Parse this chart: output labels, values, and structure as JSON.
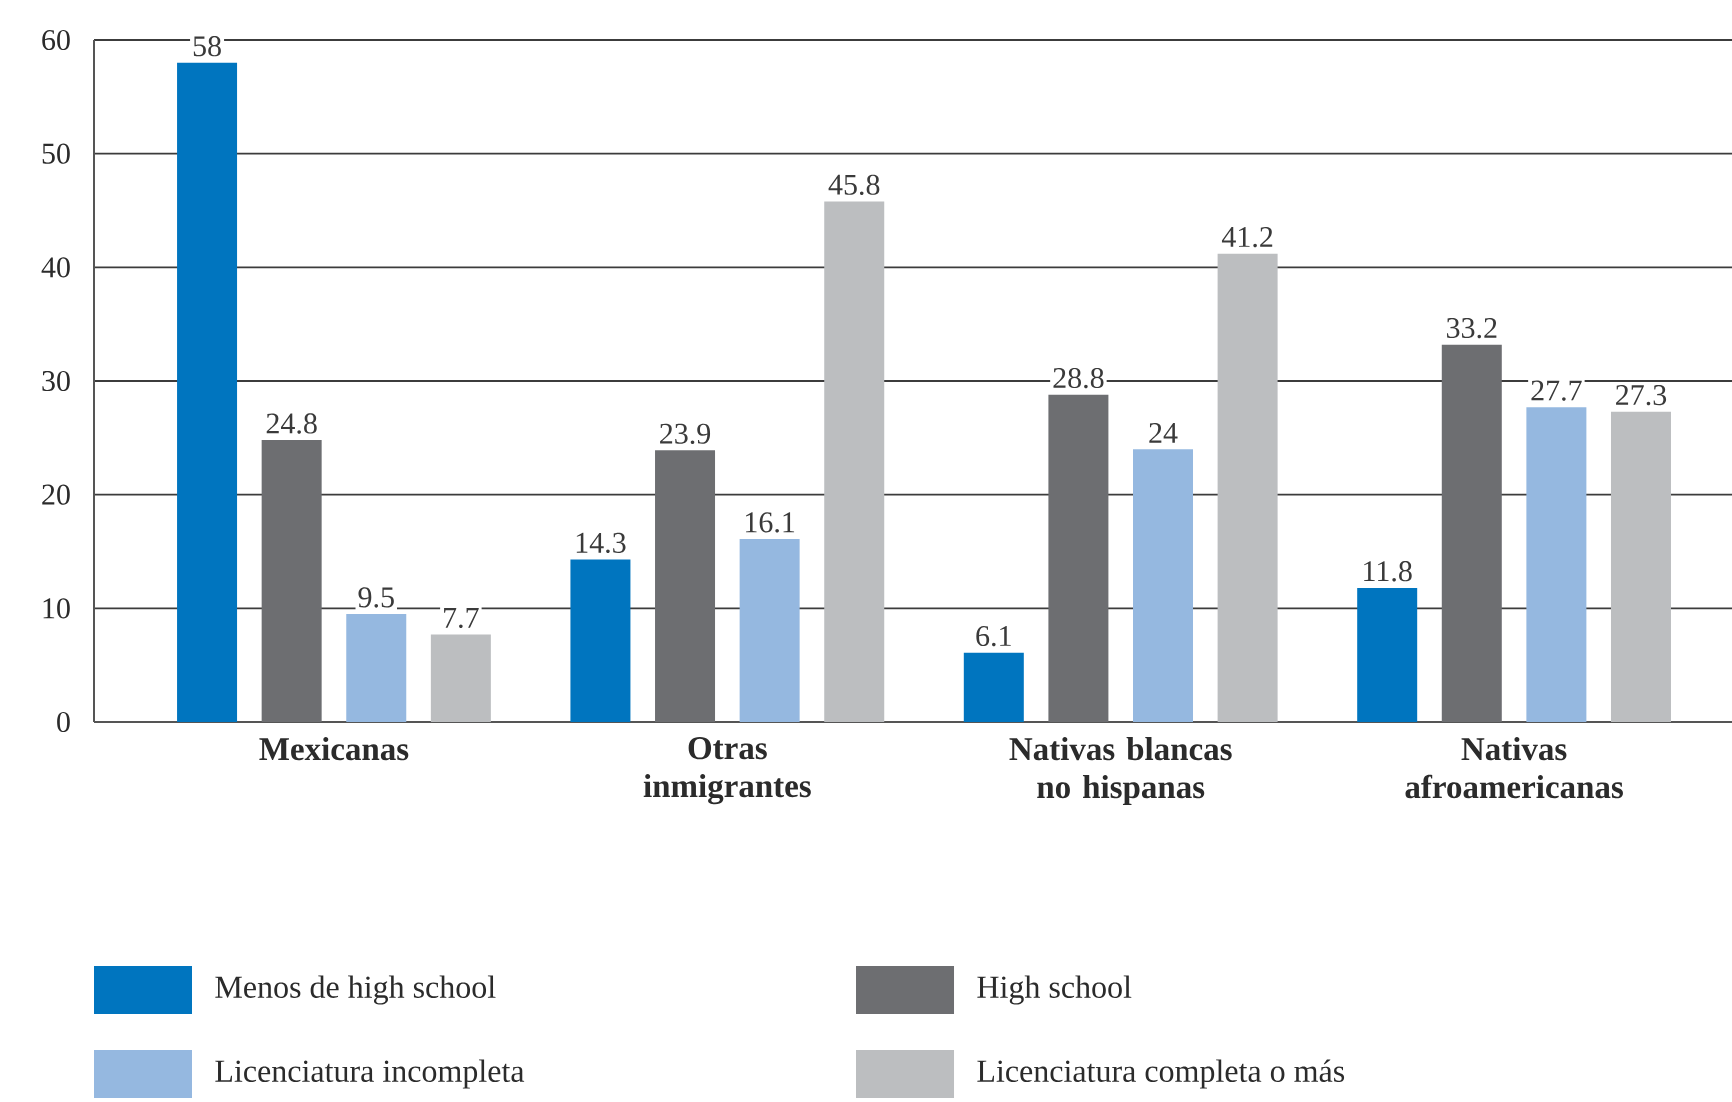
{
  "chart_data": {
    "type": "bar",
    "categories": [
      "Mexicanas",
      "Otras inmigrantes",
      "Nativas blancas no hispanas",
      "Nativas afroamericanas"
    ],
    "series": [
      {
        "name": "Menos de high school",
        "color": "#0075bf",
        "values": [
          58,
          14.3,
          6.1,
          11.8
        ]
      },
      {
        "name": "High school",
        "color": "#6d6e71",
        "values": [
          24.8,
          23.9,
          28.8,
          33.2
        ]
      },
      {
        "name": "Licenciatura incompleta",
        "color": "#95b8e0",
        "values": [
          9.5,
          16.1,
          24,
          27.7
        ]
      },
      {
        "name": "Licenciatura completa o más",
        "color": "#bcbec0",
        "values": [
          7.7,
          45.8,
          41.2,
          27.3
        ]
      }
    ],
    "ylim": [
      0,
      60
    ],
    "yticks": [
      0,
      10,
      20,
      30,
      40,
      50,
      60
    ],
    "grid": "y",
    "legend": "bottom",
    "data_labels": true
  }
}
